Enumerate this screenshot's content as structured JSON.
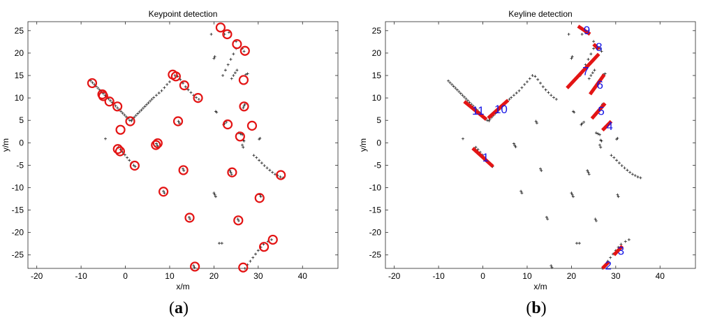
{
  "chart_data": [
    {
      "type": "scatter",
      "title": "Keypoint detection",
      "xlabel": "x/m",
      "ylabel": "y/m",
      "xlim": [
        -22,
        48
      ],
      "ylim": [
        -28,
        27
      ],
      "xticks": [
        -20,
        -10,
        0,
        10,
        20,
        30,
        40
      ],
      "yticks": [
        -25,
        -20,
        -15,
        -10,
        -5,
        0,
        5,
        10,
        15,
        20,
        25
      ],
      "grid": false,
      "caption": "(a)",
      "scan_points": [
        [
          -7.8,
          13.8
        ],
        [
          -7.4,
          13.4
        ],
        [
          -7.0,
          13.0
        ],
        [
          -6.6,
          12.6
        ],
        [
          -6.2,
          12.2
        ],
        [
          -5.8,
          11.8
        ],
        [
          -5.4,
          11.4
        ],
        [
          -5.0,
          11.0
        ],
        [
          -4.6,
          10.6
        ],
        [
          -4.2,
          10.2
        ],
        [
          -3.8,
          9.8
        ],
        [
          -3.4,
          9.4
        ],
        [
          -3.0,
          9.0
        ],
        [
          -2.6,
          8.6
        ],
        [
          -2.2,
          8.2
        ],
        [
          -1.8,
          7.8
        ],
        [
          -1.4,
          7.4
        ],
        [
          -1.0,
          7.0
        ],
        [
          -0.6,
          6.6
        ],
        [
          -0.2,
          6.2
        ],
        [
          0.2,
          5.8
        ],
        [
          0.6,
          5.4
        ],
        [
          1.0,
          5.0
        ],
        [
          1.4,
          4.9
        ],
        [
          1.6,
          5.3
        ],
        [
          2.0,
          5.7
        ],
        [
          2.4,
          6.1
        ],
        [
          2.8,
          6.5
        ],
        [
          3.2,
          6.9
        ],
        [
          3.6,
          7.3
        ],
        [
          4.0,
          7.7
        ],
        [
          4.4,
          8.1
        ],
        [
          4.8,
          8.5
        ],
        [
          5.2,
          8.9
        ],
        [
          5.6,
          9.3
        ],
        [
          6.0,
          9.7
        ],
        [
          6.4,
          10.1
        ],
        [
          7.0,
          10.6
        ],
        [
          7.6,
          11.1
        ],
        [
          8.2,
          11.6
        ],
        [
          8.8,
          12.3
        ],
        [
          9.4,
          13.0
        ],
        [
          10.0,
          13.6
        ],
        [
          10.6,
          14.3
        ],
        [
          11.2,
          15.0
        ],
        [
          11.8,
          14.8
        ],
        [
          12.4,
          14.1
        ],
        [
          13.0,
          13.3
        ],
        [
          13.6,
          12.5
        ],
        [
          14.2,
          11.8
        ],
        [
          14.8,
          11.2
        ],
        [
          15.4,
          10.6
        ],
        [
          16.0,
          10.1
        ],
        [
          16.6,
          9.7
        ],
        [
          -4.5,
          0.9
        ],
        [
          -1.6,
          -1.0
        ],
        [
          -1.1,
          -1.5
        ],
        [
          -0.6,
          -2.1
        ],
        [
          -0.1,
          -2.7
        ],
        [
          0.4,
          -3.3
        ],
        [
          0.9,
          -3.9
        ],
        [
          1.4,
          -4.5
        ],
        [
          1.9,
          -5.0
        ],
        [
          2.2,
          -5.3
        ],
        [
          7.0,
          -0.2
        ],
        [
          7.2,
          -0.6
        ],
        [
          7.4,
          -0.9
        ],
        [
          12.0,
          4.8
        ],
        [
          12.2,
          4.4
        ],
        [
          13.0,
          -5.8
        ],
        [
          13.2,
          -6.2
        ],
        [
          8.6,
          -10.8
        ],
        [
          8.8,
          -11.2
        ],
        [
          14.4,
          -16.6
        ],
        [
          14.6,
          -17.0
        ],
        [
          15.4,
          -27.4
        ],
        [
          15.6,
          -27.8
        ],
        [
          20.0,
          -11.2
        ],
        [
          20.2,
          -11.6
        ],
        [
          20.4,
          -12.0
        ],
        [
          21.2,
          -22.4
        ],
        [
          21.8,
          -22.4
        ],
        [
          19.4,
          24.2
        ],
        [
          20.0,
          18.8
        ],
        [
          20.2,
          19.2
        ],
        [
          20.4,
          7.0
        ],
        [
          20.6,
          6.8
        ],
        [
          22.2,
          4.0
        ],
        [
          22.4,
          4.3
        ],
        [
          22.8,
          4.6
        ],
        [
          22.0,
          15.0
        ],
        [
          22.6,
          16.2
        ],
        [
          23.2,
          17.4
        ],
        [
          23.8,
          18.6
        ],
        [
          24.4,
          19.8
        ],
        [
          25.0,
          21.0
        ],
        [
          24.0,
          14.3
        ],
        [
          24.4,
          15.0
        ],
        [
          24.8,
          15.6
        ],
        [
          25.2,
          16.2
        ],
        [
          23.6,
          -6.2
        ],
        [
          23.8,
          -6.6
        ],
        [
          24.0,
          -7.0
        ],
        [
          25.4,
          -17.0
        ],
        [
          25.6,
          -17.4
        ],
        [
          30.4,
          -11.6
        ],
        [
          30.6,
          -12.0
        ],
        [
          30.2,
          0.8
        ],
        [
          30.4,
          1.0
        ],
        [
          25.6,
          2.2
        ],
        [
          26.0,
          2.0
        ],
        [
          26.4,
          1.8
        ],
        [
          26.6,
          0.6
        ],
        [
          26.8,
          0.4
        ],
        [
          26.4,
          -0.5
        ],
        [
          26.6,
          -1.0
        ],
        [
          26.6,
          7.8
        ],
        [
          26.8,
          8.2
        ],
        [
          27.0,
          8.6
        ],
        [
          27.0,
          -28.0
        ],
        [
          27.6,
          -27.2
        ],
        [
          28.2,
          -26.4
        ],
        [
          28.8,
          -25.6
        ],
        [
          29.4,
          -24.8
        ],
        [
          30.0,
          -24.0
        ],
        [
          30.6,
          -23.3
        ],
        [
          31.2,
          -22.6
        ],
        [
          32.2,
          -22.0
        ],
        [
          33.0,
          -21.6
        ],
        [
          22.4,
          24.2
        ],
        [
          23.4,
          24.6
        ],
        [
          25.0,
          22.6
        ],
        [
          26.4,
          21.0
        ],
        [
          26.8,
          20.4
        ],
        [
          27.2,
          15.2
        ],
        [
          27.6,
          15.4
        ],
        [
          29.0,
          -2.8
        ],
        [
          29.6,
          -3.3
        ],
        [
          30.2,
          -3.9
        ],
        [
          30.8,
          -4.5
        ],
        [
          31.4,
          -5.1
        ],
        [
          32.0,
          -5.6
        ],
        [
          32.6,
          -6.1
        ],
        [
          33.2,
          -6.6
        ],
        [
          33.8,
          -7.0
        ],
        [
          34.4,
          -7.3
        ],
        [
          35.0,
          -7.6
        ],
        [
          35.6,
          -7.8
        ]
      ],
      "keypoints": [
        [
          -7.5,
          13.3
        ],
        [
          -5.2,
          10.8
        ],
        [
          -5.0,
          10.4
        ],
        [
          -3.6,
          9.2
        ],
        [
          -1.8,
          8.1
        ],
        [
          -1.1,
          2.9
        ],
        [
          1.1,
          4.8
        ],
        [
          -1.7,
          -1.4
        ],
        [
          -1.2,
          -1.9
        ],
        [
          2.1,
          -5.1
        ],
        [
          6.9,
          -0.5
        ],
        [
          7.3,
          -0.1
        ],
        [
          8.6,
          -10.9
        ],
        [
          10.7,
          15.2
        ],
        [
          11.4,
          14.8
        ],
        [
          11.9,
          4.8
        ],
        [
          13.3,
          12.8
        ],
        [
          13.1,
          -6.1
        ],
        [
          14.5,
          -16.7
        ],
        [
          15.7,
          -27.6
        ],
        [
          16.4,
          10.0
        ],
        [
          21.5,
          25.7
        ],
        [
          23.0,
          24.2
        ],
        [
          23.1,
          4.1
        ],
        [
          24.1,
          -6.6
        ],
        [
          25.2,
          22.0
        ],
        [
          25.5,
          -17.3
        ],
        [
          25.9,
          1.4
        ],
        [
          26.7,
          14.0
        ],
        [
          26.8,
          8.1
        ],
        [
          27.0,
          20.5
        ],
        [
          26.6,
          -27.8
        ],
        [
          28.6,
          3.8
        ],
        [
          30.3,
          -12.3
        ],
        [
          31.3,
          -23.2
        ],
        [
          33.3,
          -21.6
        ],
        [
          35.1,
          -7.2
        ]
      ]
    },
    {
      "type": "scatter",
      "title": "Keyline detection",
      "xlabel": "x/m",
      "ylabel": "y/m",
      "xlim": [
        -22,
        48
      ],
      "ylim": [
        -28,
        27
      ],
      "xticks": [
        -20,
        -10,
        0,
        10,
        20,
        30,
        40
      ],
      "yticks": [
        -25,
        -20,
        -15,
        -10,
        -5,
        0,
        5,
        10,
        15,
        20,
        25
      ],
      "grid": false,
      "caption": "(b)",
      "keylines": [
        {
          "label": "1",
          "x1": -2.3,
          "y1": -1.2,
          "x2": 2.3,
          "y2": -5.3
        },
        {
          "label": "2",
          "x1": 27.0,
          "y1": -28.0,
          "x2": 28.4,
          "y2": -26.6
        },
        {
          "label": "3",
          "x1": 29.6,
          "y1": -25.0,
          "x2": 31.5,
          "y2": -23.0
        },
        {
          "label": "4",
          "x1": 27.0,
          "y1": 2.8,
          "x2": 29.0,
          "y2": 4.8
        },
        {
          "label": "5",
          "x1": 24.6,
          "y1": 5.4,
          "x2": 27.6,
          "y2": 8.8
        },
        {
          "label": "6",
          "x1": 24.2,
          "y1": 10.8,
          "x2": 27.4,
          "y2": 15.2
        },
        {
          "label": "7",
          "x1": 19.0,
          "y1": 12.2,
          "x2": 26.2,
          "y2": 19.8
        },
        {
          "label": "8",
          "x1": 25.0,
          "y1": 22.0,
          "x2": 26.2,
          "y2": 20.8
        },
        {
          "label": "9",
          "x1": 21.5,
          "y1": 26.0,
          "x2": 24.2,
          "y2": 24.2
        },
        {
          "label": "10",
          "x1": 1.2,
          "y1": 5.5,
          "x2": 5.7,
          "y2": 9.5
        },
        {
          "label": "11",
          "x1": -4.2,
          "y1": 9.2,
          "x2": 0.8,
          "y2": 5.2
        }
      ]
    }
  ],
  "captions": {
    "a": {
      "open": "(",
      "letter": "a",
      "close": ")"
    },
    "b": {
      "open": "(",
      "letter": "b",
      "close": ")"
    }
  },
  "colors": {
    "marker": "#e31414",
    "keyline": "#e31414",
    "label": "#1414e6",
    "scan": "#222222"
  }
}
